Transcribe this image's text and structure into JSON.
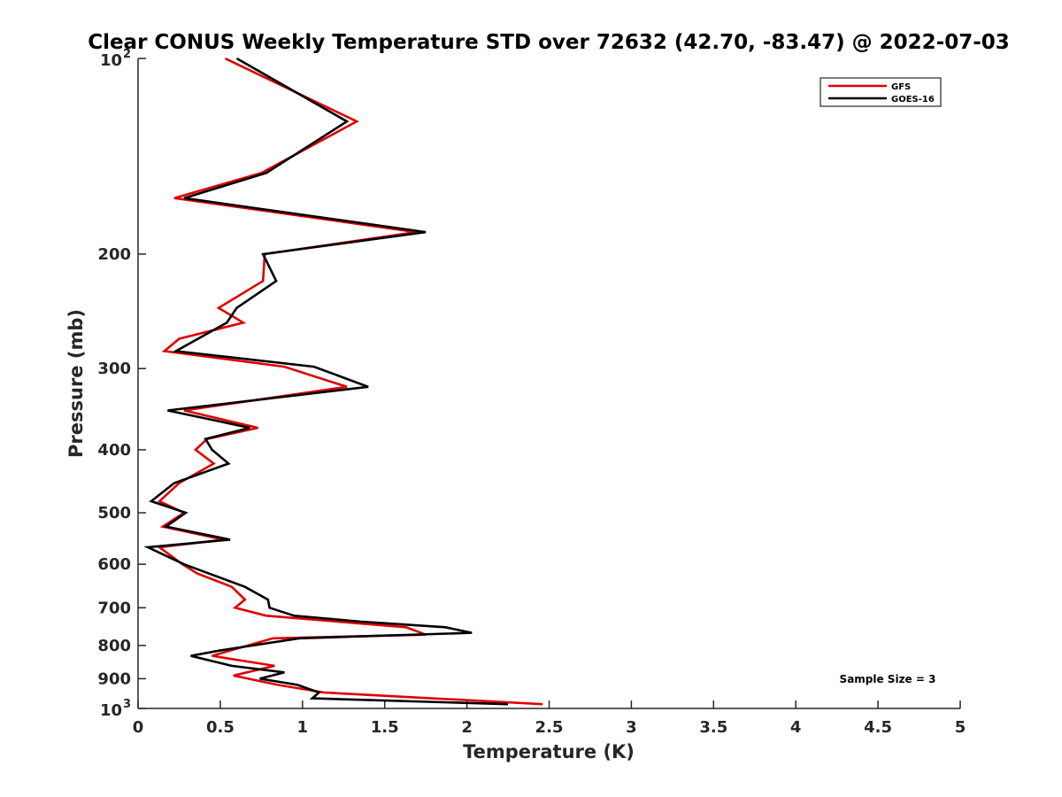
{
  "chart_data": {
    "type": "line",
    "title": "Clear CONUS Weekly Temperature STD over 72632 (42.70, -83.47) @ 2022-07-03",
    "xlabel": "Temperature (K)",
    "ylabel": "Pressure (mb)",
    "xlim": [
      0,
      5
    ],
    "ylim": [
      100,
      1000
    ],
    "yscale": "log",
    "y_reversed": true,
    "x_ticks": [
      "0",
      "0.5",
      "1",
      "1.5",
      "2",
      "2.5",
      "3",
      "3.5",
      "4",
      "4.5",
      "5"
    ],
    "y_ticks": [
      {
        "value": 100,
        "base": "10",
        "exp": "2"
      },
      {
        "value": 200,
        "label": "200"
      },
      {
        "value": 300,
        "label": "300"
      },
      {
        "value": 400,
        "label": "400"
      },
      {
        "value": 500,
        "label": "500"
      },
      {
        "value": 600,
        "label": "600"
      },
      {
        "value": 700,
        "label": "700"
      },
      {
        "value": 800,
        "label": "800"
      },
      {
        "value": 900,
        "label": "900"
      },
      {
        "value": 1000,
        "base": "10",
        "exp": "3"
      }
    ],
    "grid": false,
    "legend_position": "top-right",
    "annotation": "Sample Size = 3",
    "series": [
      {
        "name": "GFS",
        "color": "#e00000",
        "points": [
          [
            0.53,
            100
          ],
          [
            1.33,
            125
          ],
          [
            0.75,
            150
          ],
          [
            0.22,
            164
          ],
          [
            1.69,
            185
          ],
          [
            0.77,
            200
          ],
          [
            0.76,
            220
          ],
          [
            0.49,
            242
          ],
          [
            0.64,
            255
          ],
          [
            0.25,
            270
          ],
          [
            0.16,
            282
          ],
          [
            0.89,
            298
          ],
          [
            1.27,
            320
          ],
          [
            0.28,
            348
          ],
          [
            0.73,
            370
          ],
          [
            0.42,
            385
          ],
          [
            0.35,
            400
          ],
          [
            0.46,
            420
          ],
          [
            0.25,
            450
          ],
          [
            0.13,
            480
          ],
          [
            0.28,
            500
          ],
          [
            0.15,
            525
          ],
          [
            0.52,
            550
          ],
          [
            0.13,
            565
          ],
          [
            0.27,
            600
          ],
          [
            0.36,
            620
          ],
          [
            0.57,
            650
          ],
          [
            0.65,
            680
          ],
          [
            0.59,
            700
          ],
          [
            0.78,
            720
          ],
          [
            1.63,
            750
          ],
          [
            1.75,
            770
          ],
          [
            0.82,
            780
          ],
          [
            0.45,
            830
          ],
          [
            0.83,
            860
          ],
          [
            0.58,
            890
          ],
          [
            0.85,
            920
          ],
          [
            1.13,
            945
          ],
          [
            2.46,
            985
          ]
        ]
      },
      {
        "name": "GOES-16",
        "color": "#000000",
        "points": [
          [
            0.6,
            100
          ],
          [
            1.27,
            125
          ],
          [
            0.78,
            150
          ],
          [
            0.28,
            164
          ],
          [
            1.75,
            185
          ],
          [
            0.76,
            200
          ],
          [
            0.84,
            220
          ],
          [
            0.6,
            242
          ],
          [
            0.54,
            255
          ],
          [
            0.23,
            282
          ],
          [
            1.07,
            298
          ],
          [
            1.4,
            320
          ],
          [
            0.18,
            348
          ],
          [
            0.68,
            370
          ],
          [
            0.41,
            385
          ],
          [
            0.45,
            400
          ],
          [
            0.55,
            420
          ],
          [
            0.22,
            450
          ],
          [
            0.08,
            480
          ],
          [
            0.29,
            500
          ],
          [
            0.17,
            525
          ],
          [
            0.56,
            550
          ],
          [
            0.06,
            565
          ],
          [
            0.28,
            600
          ],
          [
            0.65,
            650
          ],
          [
            0.79,
            680
          ],
          [
            0.8,
            700
          ],
          [
            0.95,
            720
          ],
          [
            1.35,
            735
          ],
          [
            1.87,
            750
          ],
          [
            2.03,
            765
          ],
          [
            0.98,
            780
          ],
          [
            0.49,
            815
          ],
          [
            0.32,
            830
          ],
          [
            0.57,
            860
          ],
          [
            0.89,
            880
          ],
          [
            0.74,
            900
          ],
          [
            0.97,
            920
          ],
          [
            1.1,
            945
          ],
          [
            1.06,
            965
          ],
          [
            2.25,
            985
          ]
        ]
      }
    ]
  }
}
